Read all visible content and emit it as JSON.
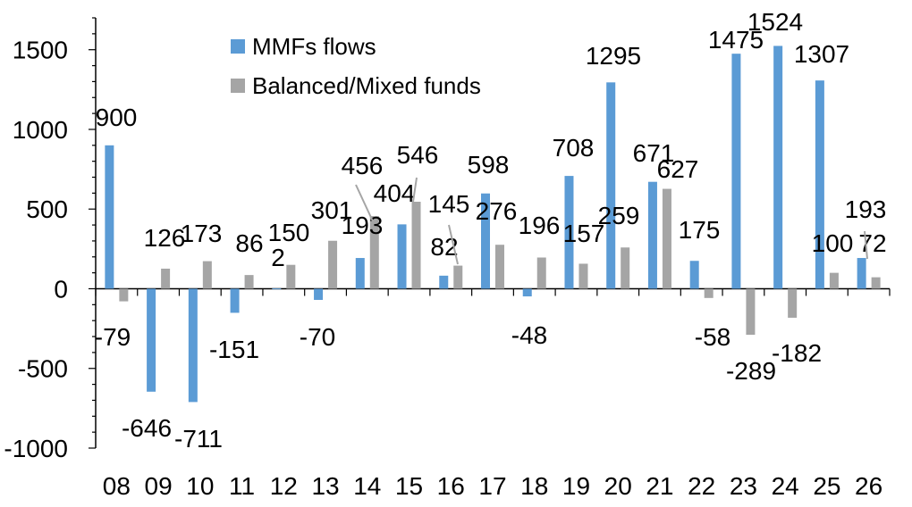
{
  "chart_data": {
    "type": "bar",
    "categories": [
      "08",
      "09",
      "10",
      "11",
      "12",
      "13",
      "14",
      "15",
      "16",
      "17",
      "18",
      "19",
      "20",
      "21",
      "22",
      "23",
      "24",
      "25",
      "26"
    ],
    "series": [
      {
        "name": "MMFs flows",
        "color": "#5B9BD5",
        "values": [
          900,
          -646,
          -711,
          -151,
          2,
          -70,
          193,
          404,
          82,
          598,
          -48,
          708,
          1295,
          671,
          175,
          1475,
          1524,
          1307,
          193
        ],
        "labels": [
          "900",
          "-646",
          "-711",
          "-151",
          "2",
          "-70",
          "193",
          "404",
          "82",
          "598",
          "-48",
          "708",
          "1295",
          "671",
          "175",
          "1475",
          "1524",
          "1307",
          "193"
        ]
      },
      {
        "name": "Balanced/Mixed funds",
        "color": "#A5A5A5",
        "values": [
          -79,
          126,
          173,
          86,
          150,
          301,
          456,
          546,
          145,
          276,
          196,
          157,
          259,
          627,
          -58,
          -289,
          -182,
          100,
          72
        ],
        "labels": [
          "-79",
          "126",
          "173",
          "86",
          "150",
          "301",
          "456",
          "546",
          "145",
          "276",
          "196",
          "157",
          "259",
          "627",
          "-58",
          "-289",
          "-182",
          "100",
          "72"
        ]
      }
    ],
    "yticks": [
      "1500",
      "1000",
      "500",
      "0",
      "-500",
      "-1000"
    ],
    "ylim": [
      -1000,
      1500
    ],
    "legend_position": "top-center",
    "grid": false
  }
}
